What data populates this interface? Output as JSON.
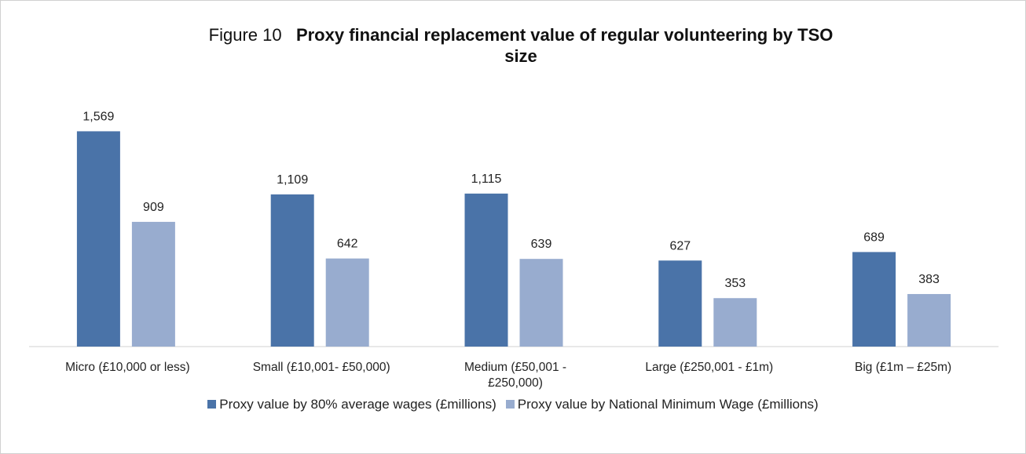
{
  "chart_data": {
    "type": "bar",
    "title_prefix": "Figure 10",
    "title": "Proxy financial replacement value of regular volunteering by TSO size",
    "categories": [
      "Micro (£10,000 or less)",
      "Small (£10,001- £50,000)",
      "Medium (£50,001 - £250,000)",
      "Large (£250,001 - £1m)",
      "Big (£1m  – £25m)"
    ],
    "series": [
      {
        "name": "Proxy value by 80% average wages (£millions)",
        "color": "#4a73a8",
        "values": [
          1569,
          1109,
          1115,
          627,
          689
        ],
        "value_labels": [
          "1,569",
          "1,109",
          "1,115",
          "627",
          "689"
        ]
      },
      {
        "name": "Proxy value by National Minimum Wage (£millions)",
        "color": "#98accf",
        "values": [
          909,
          642,
          639,
          353,
          383
        ],
        "value_labels": [
          "909",
          "642",
          "639",
          "353",
          "383"
        ]
      }
    ],
    "ylim": [
      0,
      1800
    ],
    "legend": "bottom"
  }
}
